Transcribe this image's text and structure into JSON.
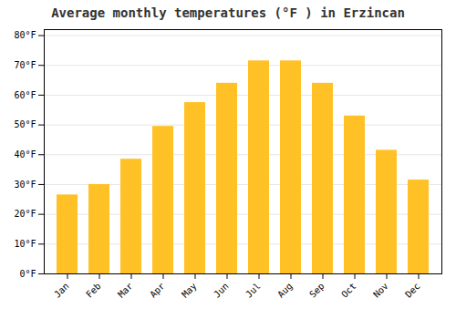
{
  "chart_data": {
    "type": "bar",
    "title": "Average monthly temperatures (°F ) in Erzincan",
    "categories": [
      "Jan",
      "Feb",
      "Mar",
      "Apr",
      "May",
      "Jun",
      "Jul",
      "Aug",
      "Sep",
      "Oct",
      "Nov",
      "Dec"
    ],
    "values": [
      26.5,
      30.0,
      38.5,
      49.5,
      57.5,
      64.0,
      71.5,
      71.5,
      64.0,
      53.0,
      41.5,
      31.5
    ],
    "color": "#FFC125",
    "ylim": [
      0,
      82
    ],
    "yticks": [
      {
        "value": 0,
        "label": "0°F"
      },
      {
        "value": 10,
        "label": "10°F"
      },
      {
        "value": 20,
        "label": "20°F"
      },
      {
        "value": 30,
        "label": "30°F"
      },
      {
        "value": 40,
        "label": "40°F"
      },
      {
        "value": 50,
        "label": "50°F"
      },
      {
        "value": 60,
        "label": "60°F"
      },
      {
        "value": 70,
        "label": "70°F"
      },
      {
        "value": 80,
        "label": "80°F"
      }
    ],
    "grid": true
  }
}
